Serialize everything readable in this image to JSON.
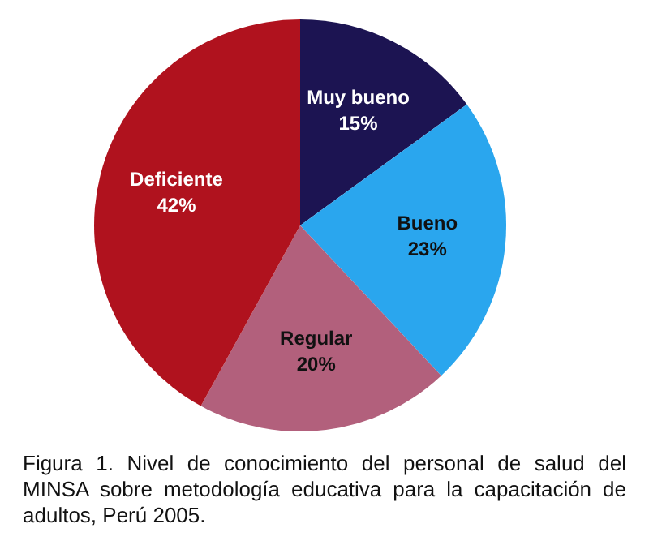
{
  "chart_data": {
    "type": "pie",
    "categories": [
      "Muy bueno",
      "Bueno",
      "Regular",
      "Deficiente"
    ],
    "values": [
      15,
      23,
      20,
      42
    ],
    "value_labels": [
      "15%",
      "23%",
      "20%",
      "42%"
    ],
    "colors": [
      "#1c1452",
      "#2aa6ee",
      "#b2607c",
      "#b0121e"
    ],
    "legend": false,
    "annotations": [
      "Figura 1. Nivel de conocimiento del personal de salud del MINSA sobre metodología educativa para la capacitación de adultos, Perú 2005."
    ]
  }
}
